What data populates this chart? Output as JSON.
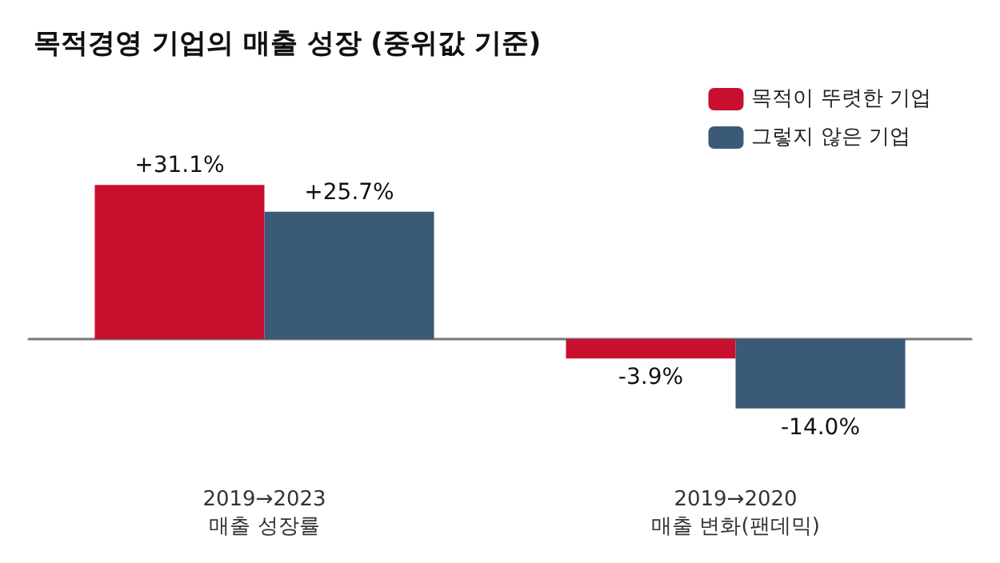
{
  "chart_data": {
    "type": "bar",
    "title": "목적경영 기업의 매출 성장 (중위값 기준)",
    "categories": [
      "2019→2023\n매출 성장률",
      "2019→2020\n매출 변화(팬데믹)"
    ],
    "series": [
      {
        "name": "목적이 뚜렷한 기업",
        "color": "#c8102e",
        "values": [
          31.1,
          -3.9
        ],
        "value_labels": [
          "+31.1%",
          "-3.9%"
        ]
      },
      {
        "name": "그렇지 않은 기업",
        "color": "#3a5a78",
        "values": [
          25.7,
          -14.0
        ],
        "value_labels": [
          "+25.7%",
          "-14.0%"
        ]
      }
    ],
    "legend": "top right"
  }
}
